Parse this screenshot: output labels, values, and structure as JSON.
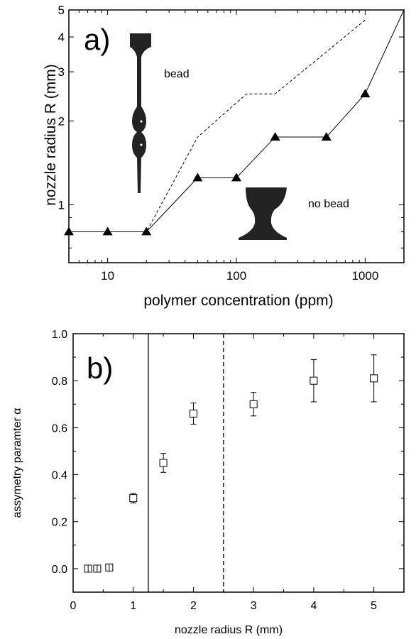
{
  "chart_data": [
    {
      "panel_label": "a)",
      "type": "line",
      "xlabel": "polymer concentration (ppm)",
      "ylabel": "nozzle radius R (mm)",
      "xscale": "log",
      "yscale": "log",
      "xlim": [
        5,
        2000
      ],
      "ylim": [
        0.62,
        5
      ],
      "x_ticks": [
        10,
        100,
        1000
      ],
      "x_tick_labels": [
        "10",
        "100",
        "1000"
      ],
      "y_ticks": [
        1,
        2,
        3,
        4,
        5
      ],
      "y_tick_labels": [
        "1",
        "2",
        "3",
        "4",
        "5"
      ],
      "series": [
        {
          "style": "solid line with filled triangle markers",
          "color": "#000000",
          "x": [
            5,
            10,
            20,
            50,
            100,
            200,
            500,
            1000,
            2000
          ],
          "y": [
            0.8,
            0.8,
            0.8,
            1.25,
            1.25,
            1.75,
            1.75,
            2.5,
            5
          ]
        },
        {
          "style": "dashed line",
          "color": "#000000",
          "x": [
            5,
            20,
            50,
            120,
            200,
            1000
          ],
          "y": [
            0.8,
            0.8,
            1.75,
            2.5,
            2.5,
            4.6
          ]
        }
      ],
      "annotations": [
        "bead",
        "no bead"
      ]
    },
    {
      "panel_label": "b)",
      "type": "scatter",
      "xlabel": "nozzle radius R (mm)",
      "ylabel": "assymetry  paramter α",
      "xlim": [
        0,
        5.5
      ],
      "ylim": [
        -0.1,
        1.0
      ],
      "x_ticks": [
        0,
        1,
        2,
        3,
        4,
        5
      ],
      "x_tick_labels": [
        "0",
        "1",
        "2",
        "3",
        "4",
        "5"
      ],
      "y_ticks": [
        0.0,
        0.2,
        0.4,
        0.6,
        0.8,
        1.0
      ],
      "y_tick_labels": [
        "0.0",
        "0.2",
        "0.4",
        "0.6",
        "0.8",
        "1.0"
      ],
      "series": [
        {
          "marker": "open square with error bars",
          "color": "#000000",
          "x": [
            0.25,
            0.4,
            0.6,
            1.0,
            1.5,
            2.0,
            3.0,
            4.0,
            5.0
          ],
          "y": [
            0.0,
            0.0,
            0.005,
            0.3,
            0.45,
            0.66,
            0.7,
            0.8,
            0.81
          ],
          "err": [
            0.01,
            0.01,
            0.01,
            0.02,
            0.04,
            0.045,
            0.05,
            0.09,
            0.1
          ]
        }
      ],
      "vertical_lines": [
        {
          "x": 1.25,
          "style": "solid"
        },
        {
          "x": 2.5,
          "style": "dashed"
        }
      ]
    }
  ],
  "icons": [
    "bead-on-string-filament-icon",
    "liquid-bridge-icon"
  ]
}
